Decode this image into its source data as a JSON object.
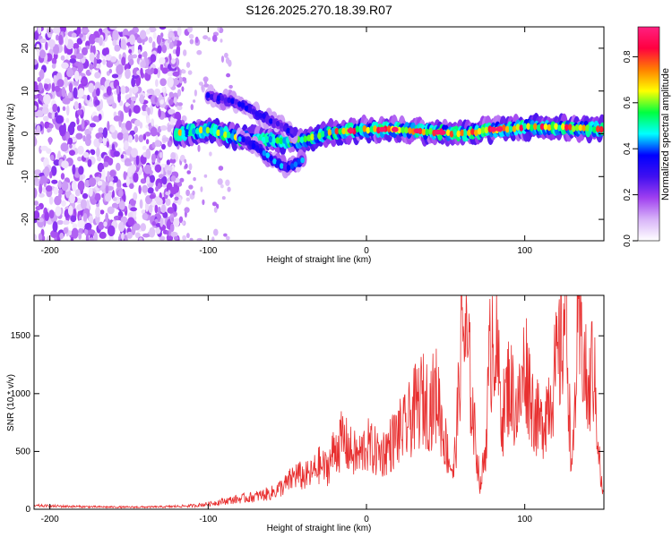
{
  "title": "S126.2025.270.18.39.R07",
  "colors": {
    "snr_line": "#e83030",
    "axis": "#000000",
    "colorbar_stops": [
      "#ffffff",
      "#d8b4f8",
      "#a040f0",
      "#4010f0",
      "#0000ff",
      "#00ffff",
      "#00ff40",
      "#ffff00",
      "#ff8000",
      "#ff0040",
      "#ff2080"
    ]
  },
  "chart_data": [
    {
      "type": "heatmap",
      "xlabel": "Height of straight line (km)",
      "ylabel": "Frequency (Hz)",
      "xlim": [
        -210,
        150
      ],
      "ylim": [
        -25,
        25
      ],
      "x_ticks": [
        -200,
        -100,
        0,
        100
      ],
      "x_tick_labels": [
        "-200",
        "-100",
        "0",
        "100"
      ],
      "y_ticks": [
        -20,
        -10,
        0,
        10,
        20
      ],
      "y_tick_labels": [
        "-20",
        "-10",
        "0",
        "10",
        "20"
      ],
      "colorbar": {
        "label": "Normalized spectral amplitude",
        "range": [
          0,
          0.93
        ],
        "ticks": [
          0,
          0.2,
          0.4,
          0.6,
          0.8
        ],
        "tick_labels": [
          "0.0",
          "0.2",
          "0.4",
          "0.6",
          "0.8"
        ]
      },
      "features": [
        {
          "name": "noise-field",
          "x_range": [
            -210,
            -118
          ],
          "freq_range": [
            -25,
            25
          ],
          "amplitude": 0.12
        },
        {
          "name": "main-echo",
          "points": [
            [
              -120,
              0
            ],
            [
              -100,
              1
            ],
            [
              -80,
              -1
            ],
            [
              -60,
              -1.5
            ],
            [
              -40,
              -1.5
            ],
            [
              -20,
              0.5
            ],
            [
              0,
              1
            ],
            [
              20,
              1
            ],
            [
              40,
              0.5
            ],
            [
              60,
              0
            ],
            [
              80,
              1
            ],
            [
              100,
              1.5
            ],
            [
              120,
              1.5
            ],
            [
              150,
              1
            ]
          ],
          "amplitude": 0.55
        },
        {
          "name": "upper-branch",
          "points": [
            [
              -100,
              9
            ],
            [
              -80,
              7
            ],
            [
              -70,
              5
            ],
            [
              -55,
              2
            ],
            [
              -45,
              0
            ]
          ],
          "amplitude": 0.3
        },
        {
          "name": "lower-branch",
          "points": [
            [
              -80,
              -1
            ],
            [
              -70,
              -3
            ],
            [
              -60,
              -6
            ],
            [
              -50,
              -8
            ],
            [
              -40,
              -6
            ]
          ],
          "amplitude": 0.35
        }
      ]
    },
    {
      "type": "line",
      "xlabel": "Height of straight line (km)",
      "ylabel": "SNR (10 * v/v)",
      "xlim": [
        -210,
        150
      ],
      "ylim": [
        0,
        1850
      ],
      "x_ticks": [
        -200,
        -100,
        0,
        100
      ],
      "x_tick_labels": [
        "-200",
        "-100",
        "0",
        "100"
      ],
      "y_ticks": [
        0,
        500,
        1000,
        1500
      ],
      "y_tick_labels": [
        "0",
        "500",
        "1000",
        "1500"
      ],
      "series": [
        {
          "name": "SNR",
          "x": [
            -210,
            -190,
            -170,
            -150,
            -130,
            -120,
            -110,
            -100,
            -90,
            -80,
            -70,
            -60,
            -50,
            -45,
            -40,
            -35,
            -30,
            -25,
            -20,
            -15,
            -10,
            -5,
            0,
            5,
            10,
            15,
            20,
            25,
            30,
            35,
            40,
            45,
            48,
            52,
            55,
            58,
            60,
            62,
            65,
            68,
            72,
            75,
            78,
            80,
            83,
            86,
            90,
            95,
            98,
            100,
            105,
            110,
            115,
            120,
            123,
            126,
            128,
            130,
            133,
            136,
            140,
            143,
            146,
            148,
            150
          ],
          "values": [
            30,
            25,
            20,
            18,
            20,
            25,
            30,
            45,
            70,
            90,
            110,
            140,
            220,
            300,
            280,
            300,
            380,
            350,
            520,
            600,
            500,
            450,
            560,
            500,
            480,
            560,
            650,
            700,
            850,
            950,
            900,
            1000,
            700,
            450,
            300,
            900,
            1650,
            1500,
            1200,
            700,
            200,
            500,
            1300,
            1650,
            1200,
            800,
            1100,
            850,
            1000,
            1300,
            900,
            700,
            950,
            1200,
            1400,
            1850,
            900,
            300,
            1400,
            1500,
            900,
            1300,
            700,
            250,
            100
          ]
        }
      ]
    }
  ]
}
